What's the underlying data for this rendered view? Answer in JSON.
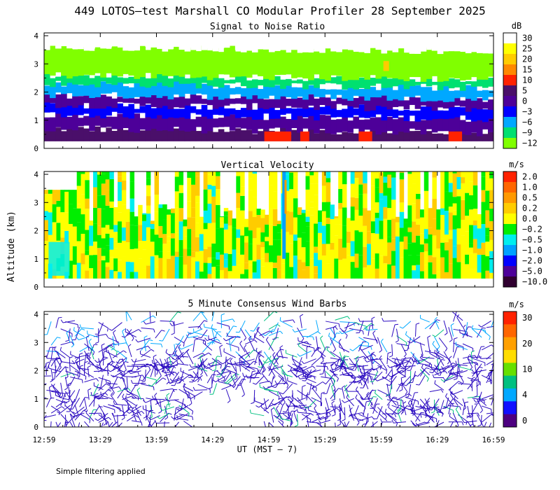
{
  "title": "449 LOTOS—test Marshall CO Modular Profiler 28 September 2025",
  "ylabel": "Altitude (km)",
  "xlabel": "UT  (MST — 7)",
  "footnote": "Simple filtering applied",
  "chart_data": [
    {
      "type": "heatmap",
      "title": "Signal to Noise Ratio",
      "unit": "dB",
      "x_ticks": [
        "12:59",
        "13:29",
        "13:59",
        "14:29",
        "14:59",
        "15:29",
        "15:59",
        "16:29",
        "16:59"
      ],
      "y_ticks": [
        "0",
        "1",
        "2",
        "3",
        "4"
      ],
      "ylim": [
        0,
        4.1
      ],
      "colorbar": [
        {
          "label": "30",
          "color": "#ffffff"
        },
        {
          "label": "25",
          "color": "#ffff00"
        },
        {
          "label": "20",
          "color": "#ffcc00"
        },
        {
          "label": "15",
          "color": "#ff8800"
        },
        {
          "label": "10",
          "color": "#ff2200"
        },
        {
          "label": "5",
          "color": "#4a0f6a"
        },
        {
          "label": "0",
          "color": "#4d0099"
        },
        {
          "label": "−3",
          "color": "#0000ff"
        },
        {
          "label": "−6",
          "color": "#00a8ff"
        },
        {
          "label": "−9",
          "color": "#00e070"
        },
        {
          "label": "−12",
          "color": "#80ff00"
        }
      ],
      "layers": [
        {
          "from": 0.25,
          "to": 0.7,
          "value": "5"
        },
        {
          "from": 0.7,
          "to": 1.2,
          "value": "0"
        },
        {
          "from": 1.2,
          "to": 1.55,
          "value": "−3"
        },
        {
          "from": 1.55,
          "to": 1.9,
          "value": "0"
        },
        {
          "from": 1.9,
          "to": 2.3,
          "value": "−6"
        },
        {
          "from": 2.3,
          "to": 2.6,
          "value": "−9"
        },
        {
          "from": 2.6,
          "to": 3.6,
          "value": "−12"
        },
        {
          "from": 3.6,
          "to": 4.1,
          "value": "30"
        }
      ]
    },
    {
      "type": "heatmap",
      "title": "Vertical Velocity",
      "unit": "m/s",
      "x_ticks": [
        "12:59",
        "13:29",
        "13:59",
        "14:29",
        "14:59",
        "15:29",
        "15:59",
        "16:29",
        "16:59"
      ],
      "y_ticks": [
        "0",
        "1",
        "2",
        "3",
        "4"
      ],
      "ylim": [
        0,
        4.1
      ],
      "colorbar": [
        {
          "label": "2.0",
          "color": "#ff2200"
        },
        {
          "label": "1.0",
          "color": "#ff6600"
        },
        {
          "label": "0.5",
          "color": "#ff9900"
        },
        {
          "label": "0.2",
          "color": "#ffcc00"
        },
        {
          "label": "0.0",
          "color": "#ffff00"
        },
        {
          "label": "−0.2",
          "color": "#00ee00"
        },
        {
          "label": "−0.5",
          "color": "#00eeee"
        },
        {
          "label": "−1.0",
          "color": "#00a0ff"
        },
        {
          "label": "−2.0",
          "color": "#0000ff"
        },
        {
          "label": "−5.0",
          "color": "#4d0099"
        },
        {
          "label": "−10.0",
          "color": "#300030"
        }
      ]
    },
    {
      "type": "wind_barbs",
      "title": "5 Minute Consensus Wind Barbs",
      "unit": "m/s",
      "x_ticks": [
        "12:59",
        "13:29",
        "13:59",
        "14:29",
        "14:59",
        "15:29",
        "15:59",
        "16:29",
        "16:59"
      ],
      "y_ticks": [
        "0",
        "1",
        "2",
        "3",
        "4"
      ],
      "ylim": [
        0,
        4.1
      ],
      "colorbar": [
        {
          "label": "30",
          "color": "#ff2200"
        },
        {
          "label": "",
          "color": "#ff6600"
        },
        {
          "label": "20",
          "color": "#ffa000"
        },
        {
          "label": "",
          "color": "#ffdd00"
        },
        {
          "label": "10",
          "color": "#66e000"
        },
        {
          "label": "",
          "color": "#00c080"
        },
        {
          "label": "4",
          "color": "#00a8ff"
        },
        {
          "label": "",
          "color": "#1010ff"
        },
        {
          "label": "0",
          "color": "#4d0080"
        }
      ]
    }
  ]
}
